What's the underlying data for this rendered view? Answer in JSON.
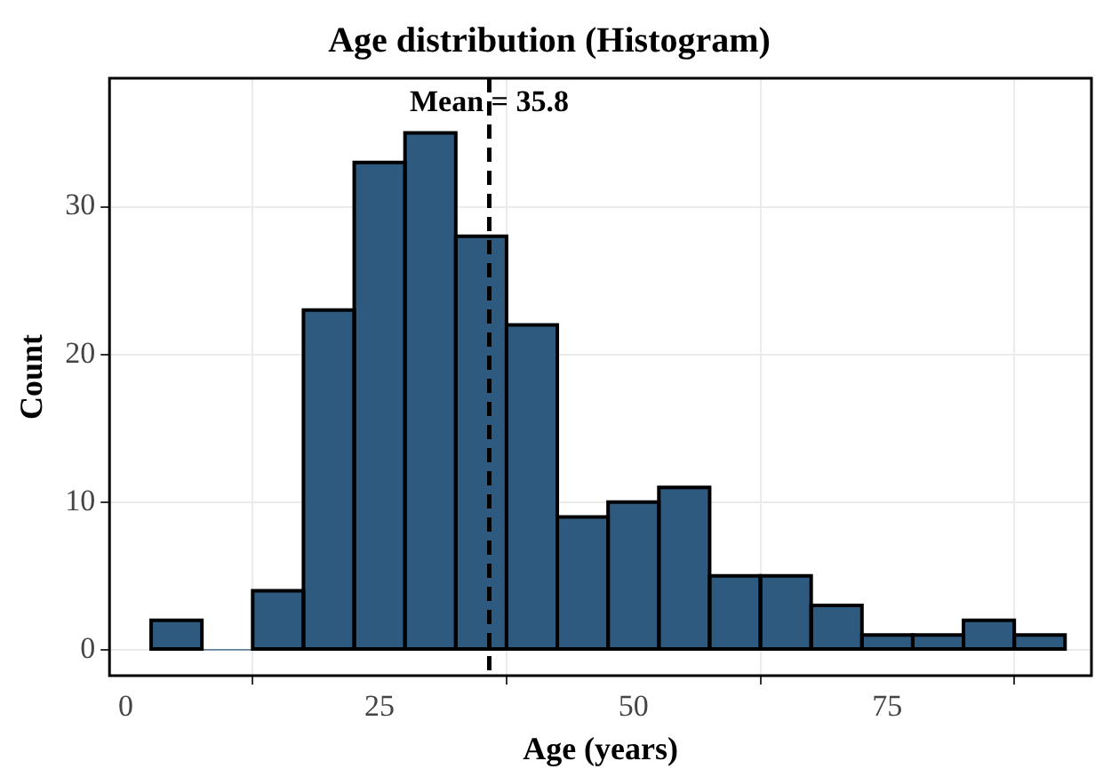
{
  "chart_data": {
    "type": "histogram",
    "title": "Age distribution (Histogram)",
    "xlabel": "Age (years)",
    "ylabel": "Count",
    "bins": [
      2.5,
      7.5,
      12.5,
      17.5,
      22.5,
      27.5,
      32.5,
      37.5,
      42.5,
      47.5,
      52.5,
      57.5,
      62.5,
      67.5,
      72.5,
      77.5,
      82.5,
      87.5,
      92.5
    ],
    "values": [
      2,
      0,
      4,
      23,
      33,
      35,
      28,
      22,
      9,
      10,
      11,
      5,
      5,
      3,
      1,
      1,
      2,
      1
    ],
    "color": "#2e5a80",
    "xlim": [
      -1.6,
      95.1
    ],
    "xticks": [
      0,
      25,
      50,
      75
    ],
    "ylim": [
      -1.75,
      38.7
    ],
    "yticks": [
      0,
      10,
      20,
      30
    ],
    "grid": true,
    "legend": false,
    "ref_lines": [
      {
        "axis": "x",
        "value": 35.8,
        "label": "Mean = 35.8",
        "color": "#000000",
        "line_style": "dashed"
      }
    ]
  }
}
